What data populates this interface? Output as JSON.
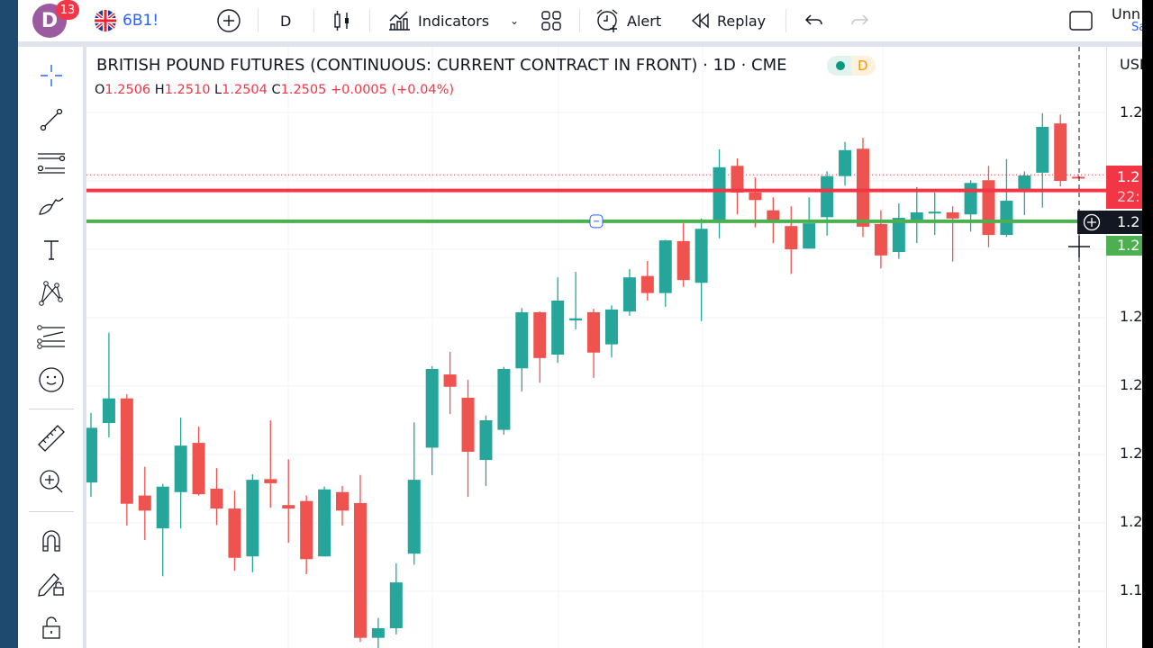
{
  "topbar": {
    "avatar_letter": "D",
    "notification_count": "13",
    "symbol": "6B1!",
    "interval": "D",
    "indicators_label": "Indicators",
    "alert_label": "Alert",
    "replay_label": "Replay",
    "layout_name": "Unn",
    "layout_sub": "Sa"
  },
  "legend": {
    "title": "BRITISH POUND FUTURES (CONTINUOUS: CURRENT CONTRACT IN FRONT) · 1D · CME",
    "status_letter": "D",
    "o_label": "O",
    "o": "1.2506",
    "h_label": "H",
    "h": "1.2510",
    "l_label": "L",
    "l": "1.2504",
    "c_label": "C",
    "c": "1.2505",
    "change": "+0.0005 (+0.04%)"
  },
  "left_toolbar": [
    "crosshair-icon",
    "trend-line-icon",
    "horizontal-lines-icon",
    "brush-icon",
    "text-icon",
    "pattern-icon",
    "forecast-icon",
    "emoji-icon",
    "ruler-icon",
    "zoom-in-icon",
    "magnet-icon",
    "lock-drawings-icon",
    "lock-icon"
  ],
  "price_axis": {
    "currency": "USD",
    "labels": [
      "1.2",
      "1.2",
      "1.2",
      "1.2",
      "1.2",
      "1.1"
    ],
    "badges": {
      "last_price": "1.2",
      "countdown": "22:",
      "crosshair": "1.2",
      "line": "1.2"
    }
  },
  "colors": {
    "up": "#26a69a",
    "down": "#ef5350",
    "red_line": "#f23645",
    "green_line": "#4caf50",
    "accent": "#2962ff"
  },
  "chart_data": {
    "type": "candlestick",
    "ylim": [
      1.178,
      1.268
    ],
    "y_gridlines": [
      1.26,
      1.25,
      1.24,
      1.23,
      1.22,
      1.21,
      1.2,
      1.19
    ],
    "horizontal_lines": [
      {
        "price": 1.2486,
        "color": "#f23645"
      },
      {
        "price": 1.2441,
        "color": "#4caf50"
      }
    ],
    "candles": [
      [
        1.2059,
        1.2161,
        1.2038,
        1.2139
      ],
      [
        1.2146,
        1.2278,
        1.2125,
        1.2182
      ],
      [
        1.2182,
        1.2188,
        1.1996,
        1.2028
      ],
      [
        1.204,
        1.2082,
        1.1975,
        1.2018
      ],
      [
        1.1992,
        1.2057,
        1.1922,
        1.2053
      ],
      [
        1.2045,
        1.2154,
        1.1992,
        1.2113
      ],
      [
        1.2117,
        1.2141,
        1.204,
        1.2042
      ],
      [
        1.205,
        1.208,
        1.1997,
        1.2021
      ],
      [
        1.2021,
        1.2047,
        1.193,
        1.1949
      ],
      [
        1.1951,
        1.2071,
        1.1928,
        1.2063
      ],
      [
        1.2064,
        1.215,
        1.2022,
        1.2058
      ],
      [
        1.2026,
        1.2093,
        1.1971,
        1.2021
      ],
      [
        1.2032,
        1.204,
        1.1925,
        1.1947
      ],
      [
        1.1951,
        1.2053,
        1.1951,
        1.2049
      ],
      [
        1.2045,
        1.2054,
        1.1996,
        1.2018
      ],
      [
        1.2029,
        1.207,
        1.1826,
        1.1832
      ],
      [
        1.1832,
        1.1861,
        1.1817,
        1.1846
      ],
      [
        1.1846,
        1.1941,
        1.1837,
        1.1913
      ],
      [
        1.1955,
        1.2147,
        1.1939,
        1.2063
      ],
      [
        1.211,
        1.2229,
        1.207,
        1.2225
      ],
      [
        1.2217,
        1.225,
        1.2159,
        1.2199
      ],
      [
        1.2183,
        1.2209,
        1.2038,
        1.2104
      ],
      [
        1.2092,
        1.2157,
        1.2054,
        1.215
      ],
      [
        1.2136,
        1.2228,
        1.2129,
        1.2225
      ],
      [
        1.2226,
        1.2314,
        1.2192,
        1.2308
      ],
      [
        1.2308,
        1.2309,
        1.2205,
        1.2241
      ],
      [
        1.2246,
        1.2359,
        1.2234,
        1.2325
      ],
      [
        1.2296,
        1.2367,
        1.2283,
        1.2299
      ],
      [
        1.2308,
        1.2313,
        1.2212,
        1.2249
      ],
      [
        1.2261,
        1.2318,
        1.2242,
        1.2312
      ],
      [
        1.2309,
        1.2371,
        1.2303,
        1.2359
      ],
      [
        1.2361,
        1.2383,
        1.2325,
        1.2336
      ],
      [
        1.2336,
        1.2414,
        1.2316,
        1.2413
      ],
      [
        1.2412,
        1.2438,
        1.2345,
        1.2355
      ],
      [
        1.2351,
        1.2445,
        1.2295,
        1.243
      ],
      [
        1.2441,
        1.2546,
        1.2416,
        1.252
      ],
      [
        1.2522,
        1.2533,
        1.2451,
        1.2483
      ],
      [
        1.2483,
        1.2505,
        1.2432,
        1.2472
      ],
      [
        1.2457,
        1.2476,
        1.2409,
        1.2443
      ],
      [
        1.2434,
        1.2463,
        1.2364,
        1.24
      ],
      [
        1.2401,
        1.2476,
        1.2401,
        1.2438
      ],
      [
        1.2447,
        1.2514,
        1.242,
        1.2507
      ],
      [
        1.2507,
        1.2557,
        1.2493,
        1.2545
      ],
      [
        1.2547,
        1.2563,
        1.2418,
        1.2433
      ],
      [
        1.2437,
        1.2457,
        1.2372,
        1.2391
      ],
      [
        1.2396,
        1.2467,
        1.2386,
        1.2446
      ],
      [
        1.2442,
        1.2491,
        1.2409,
        1.2454
      ],
      [
        1.2453,
        1.2483,
        1.2421,
        1.2455
      ],
      [
        1.2454,
        1.2463,
        1.2382,
        1.2445
      ],
      [
        1.2451,
        1.2501,
        1.2426,
        1.2497
      ],
      [
        1.2501,
        1.2522,
        1.2403,
        1.2421
      ],
      [
        1.2421,
        1.2532,
        1.2418,
        1.2471
      ],
      [
        1.2484,
        1.2514,
        1.245,
        1.2508
      ],
      [
        1.2512,
        1.2599,
        1.2461,
        1.2579
      ],
      [
        1.2584,
        1.2597,
        1.2492,
        1.25
      ],
      [
        1.2506,
        1.251,
        1.2504,
        1.2505
      ]
    ]
  }
}
